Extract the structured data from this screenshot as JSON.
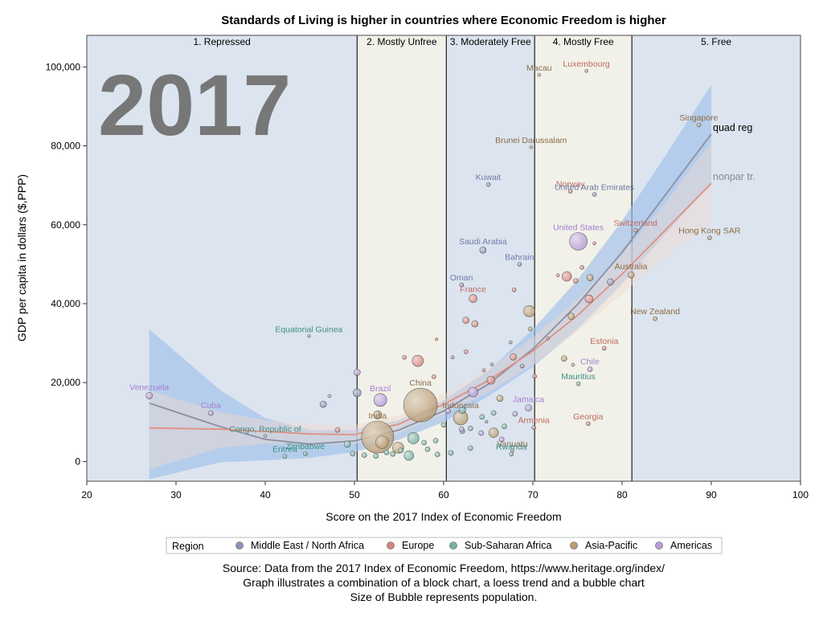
{
  "chart_data": {
    "type": "scatter",
    "title": "Standards of Living is higher in countries where Economic Freedom is higher",
    "xlabel": "Score on the 2017 Index of Economic Freedom",
    "ylabel": "GDP per capita in dollars ($,PPP)",
    "xlim": [
      20,
      100
    ],
    "ylim": [
      -5000,
      108000
    ],
    "x_ticks": [
      20,
      30,
      40,
      50,
      60,
      70,
      80,
      90,
      100
    ],
    "x_tick_labels": [
      "20",
      "30",
      "40",
      "50",
      "60",
      "70",
      "80",
      "90",
      "100"
    ],
    "y_ticks": [
      0,
      20000,
      40000,
      60000,
      80000,
      100000
    ],
    "y_tick_labels": [
      "0",
      "20,000",
      "40,000",
      "60,000",
      "80,000",
      "100,000"
    ],
    "year_label": "2017",
    "bands": [
      {
        "label": "1. Repressed",
        "from": 20,
        "to": 50.3,
        "color": "#dce4ef"
      },
      {
        "label": "2. Mostly Unfree",
        "from": 50.3,
        "to": 60.3,
        "color": "#f1f1e9"
      },
      {
        "label": "3. Moderately Free",
        "from": 60.3,
        "to": 70.2,
        "color": "#dce4ef"
      },
      {
        "label": "4. Mostly Free",
        "from": 70.2,
        "to": 81.1,
        "color": "#f1f1e9"
      },
      {
        "label": "5. Free",
        "from": 81.1,
        "to": 100,
        "color": "#dce4ef"
      }
    ],
    "regions": [
      {
        "name": "Middle East / North Africa",
        "color": "#8a94b8"
      },
      {
        "name": "Europe",
        "color": "#d8847c"
      },
      {
        "name": "Sub-Saharan Africa",
        "color": "#76b2a6"
      },
      {
        "name": "Asia-Pacific",
        "color": "#b89c72"
      },
      {
        "name": "Americas",
        "color": "#b79bd6"
      }
    ],
    "label_colors": [
      "#6f7aa8",
      "#c0695e",
      "#3e8f80",
      "#8c6c46",
      "#a57fd0"
    ],
    "legend_title": "Region",
    "trend_labels": {
      "quad": "quad reg",
      "loess": "nonpar tr."
    },
    "quad_curve": [
      [
        27,
        14800
      ],
      [
        35,
        8800
      ],
      [
        40,
        5600
      ],
      [
        45,
        4400
      ],
      [
        50,
        5200
      ],
      [
        55,
        8000
      ],
      [
        60,
        12800
      ],
      [
        65,
        19600
      ],
      [
        70,
        28500
      ],
      [
        75,
        39800
      ],
      [
        80,
        53000
      ],
      [
        85,
        68000
      ],
      [
        90,
        83000
      ]
    ],
    "quad_band_upper": [
      [
        27,
        33500
      ],
      [
        35,
        18000
      ],
      [
        40,
        11000
      ],
      [
        45,
        8000
      ],
      [
        50,
        8000
      ],
      [
        55,
        10500
      ],
      [
        60,
        15500
      ],
      [
        65,
        23000
      ],
      [
        70,
        33500
      ],
      [
        75,
        46000
      ],
      [
        80,
        61000
      ],
      [
        85,
        78000
      ],
      [
        90,
        95500
      ]
    ],
    "quad_band_lower": [
      [
        27,
        -4500
      ],
      [
        35,
        -200
      ],
      [
        40,
        300
      ],
      [
        45,
        900
      ],
      [
        50,
        2400
      ],
      [
        55,
        5500
      ],
      [
        60,
        10000
      ],
      [
        65,
        16500
      ],
      [
        70,
        24000
      ],
      [
        75,
        33500
      ],
      [
        80,
        45000
      ],
      [
        85,
        58000
      ],
      [
        90,
        70500
      ]
    ],
    "loess_curve": [
      [
        27,
        8500
      ],
      [
        35,
        8200
      ],
      [
        40,
        7600
      ],
      [
        45,
        7000
      ],
      [
        50,
        6800
      ],
      [
        55,
        9500
      ],
      [
        60,
        14500
      ],
      [
        65,
        20500
      ],
      [
        70,
        28000
      ],
      [
        75,
        37000
      ],
      [
        80,
        47500
      ],
      [
        85,
        59000
      ],
      [
        90,
        70500
      ]
    ],
    "loess_band_upper": [
      [
        27,
        18000
      ],
      [
        35,
        12500
      ],
      [
        40,
        10500
      ],
      [
        45,
        9500
      ],
      [
        50,
        9200
      ],
      [
        55,
        11800
      ],
      [
        60,
        17000
      ],
      [
        65,
        23500
      ],
      [
        70,
        31500
      ],
      [
        75,
        41000
      ],
      [
        80,
        52500
      ],
      [
        85,
        66000
      ],
      [
        90,
        81000
      ]
    ],
    "loess_band_lower": [
      [
        27,
        -2000
      ],
      [
        35,
        3500
      ],
      [
        40,
        4500
      ],
      [
        45,
        4500
      ],
      [
        50,
        4400
      ],
      [
        55,
        7200
      ],
      [
        60,
        12000
      ],
      [
        65,
        17500
      ],
      [
        70,
        24500
      ],
      [
        75,
        33000
      ],
      [
        80,
        42500
      ],
      [
        85,
        52000
      ],
      [
        90,
        60000
      ]
    ],
    "points": [
      {
        "x": 27,
        "y": 16700,
        "r": 4,
        "region": 4,
        "label": "Venezuela"
      },
      {
        "x": 33.9,
        "y": 12300,
        "r": 3,
        "region": 4,
        "label": "Cuba"
      },
      {
        "x": 44.9,
        "y": 31800,
        "r": 1.8,
        "region": 2,
        "label": "Equatorial Guinea"
      },
      {
        "x": 40,
        "y": 6500,
        "r": 2,
        "region": 2,
        "label": "Congo, Republic of"
      },
      {
        "x": 44.5,
        "y": 2000,
        "r": 2.5,
        "region": 2,
        "label": "Zimbabwe"
      },
      {
        "x": 42.2,
        "y": 1300,
        "r": 2.5,
        "region": 2,
        "label": "Eritrea"
      },
      {
        "x": 52.9,
        "y": 15600,
        "r": 8,
        "region": 4,
        "label": "Brazil"
      },
      {
        "x": 52.6,
        "y": 11800,
        "r": 5,
        "region": 3,
        "label": ""
      },
      {
        "x": 52.6,
        "y": 6200,
        "r": 20,
        "region": 3,
        "label": "India"
      },
      {
        "x": 57.4,
        "y": 14300,
        "r": 21,
        "region": 3,
        "label": "China"
      },
      {
        "x": 61.9,
        "y": 11100,
        "r": 9,
        "region": 3,
        "label": "Indonesia"
      },
      {
        "x": 57.1,
        "y": 25500,
        "r": 7,
        "region": 1,
        "label": ""
      },
      {
        "x": 64.8,
        "y": 10100,
        "r": 1.8,
        "region": 0,
        "label": ""
      },
      {
        "x": 69.5,
        "y": 13600,
        "r": 4,
        "region": 4,
        "label": "Jamaica"
      },
      {
        "x": 70.1,
        "y": 8600,
        "r": 2.5,
        "region": 1,
        "label": "Armenia"
      },
      {
        "x": 76.2,
        "y": 9600,
        "r": 2.5,
        "region": 1,
        "label": "Georgia"
      },
      {
        "x": 76.4,
        "y": 23400,
        "r": 3,
        "region": 4,
        "label": "Chile"
      },
      {
        "x": 75.1,
        "y": 19700,
        "r": 2.5,
        "region": 2,
        "label": "Mauritius"
      },
      {
        "x": 67.7,
        "y": 2700,
        "r": 2,
        "region": 3,
        "label": "Vanuatu"
      },
      {
        "x": 67.6,
        "y": 1900,
        "r": 2.5,
        "region": 2,
        "label": "Rwanda"
      },
      {
        "x": 78,
        "y": 28700,
        "r": 2.5,
        "region": 1,
        "label": "Estonia"
      },
      {
        "x": 83.7,
        "y": 36200,
        "r": 2.5,
        "region": 3,
        "label": "New Zealand"
      },
      {
        "x": 81,
        "y": 47300,
        "r": 4,
        "region": 3,
        "label": "Australia"
      },
      {
        "x": 81.5,
        "y": 58600,
        "r": 2.5,
        "region": 1,
        "label": "Switzerland"
      },
      {
        "x": 89.8,
        "y": 56700,
        "r": 2.5,
        "region": 3,
        "label": "Hong Kong SAR"
      },
      {
        "x": 88.6,
        "y": 85300,
        "r": 2.5,
        "region": 3,
        "label": "Singapore"
      },
      {
        "x": 75.1,
        "y": 55800,
        "r": 11,
        "region": 4,
        "label": "United States"
      },
      {
        "x": 74.2,
        "y": 68500,
        "r": 2.5,
        "region": 1,
        "label": "Norway"
      },
      {
        "x": 76.9,
        "y": 67700,
        "r": 2.5,
        "region": 0,
        "label": "United Arab Emirates"
      },
      {
        "x": 76,
        "y": 99000,
        "r": 2,
        "region": 1,
        "label": "Luxembourg"
      },
      {
        "x": 70.7,
        "y": 98000,
        "r": 2,
        "region": 3,
        "label": "Macau"
      },
      {
        "x": 69.8,
        "y": 79700,
        "r": 2,
        "region": 3,
        "label": "Brunei Darussalam"
      },
      {
        "x": 65,
        "y": 70200,
        "r": 2.5,
        "region": 0,
        "label": "Kuwait"
      },
      {
        "x": 64.4,
        "y": 53600,
        "r": 4,
        "region": 0,
        "label": "Saudi Arabia"
      },
      {
        "x": 68.5,
        "y": 50000,
        "r": 2.5,
        "region": 0,
        "label": "Bahrain"
      },
      {
        "x": 62,
        "y": 44800,
        "r": 2.5,
        "region": 0,
        "label": "Oman"
      },
      {
        "x": 63.3,
        "y": 41300,
        "r": 5,
        "region": 1,
        "label": "France"
      },
      {
        "x": 73.8,
        "y": 46900,
        "r": 6,
        "region": 1,
        "label": ""
      },
      {
        "x": 74.8,
        "y": 45800,
        "r": 3,
        "region": 1,
        "label": ""
      },
      {
        "x": 76.4,
        "y": 46600,
        "r": 4,
        "region": 3,
        "label": ""
      },
      {
        "x": 78.7,
        "y": 45500,
        "r": 4,
        "region": 0,
        "label": ""
      },
      {
        "x": 76.3,
        "y": 41200,
        "r": 5,
        "region": 1,
        "label": ""
      },
      {
        "x": 69.6,
        "y": 38100,
        "r": 7,
        "region": 3,
        "label": ""
      },
      {
        "x": 74.3,
        "y": 36800,
        "r": 4,
        "region": 3,
        "label": ""
      },
      {
        "x": 62.5,
        "y": 35800,
        "r": 4,
        "region": 1,
        "label": ""
      },
      {
        "x": 63.5,
        "y": 34900,
        "r": 4,
        "region": 1,
        "label": ""
      },
      {
        "x": 67.8,
        "y": 26500,
        "r": 4,
        "region": 1,
        "label": ""
      },
      {
        "x": 65.3,
        "y": 20600,
        "r": 5,
        "region": 1,
        "label": ""
      },
      {
        "x": 63.3,
        "y": 17600,
        "r": 6,
        "region": 4,
        "label": ""
      },
      {
        "x": 66.3,
        "y": 16000,
        "r": 4,
        "region": 3,
        "label": ""
      },
      {
        "x": 65.6,
        "y": 7300,
        "r": 6,
        "region": 3,
        "label": ""
      },
      {
        "x": 62.1,
        "y": 13000,
        "r": 4,
        "region": 2,
        "label": ""
      },
      {
        "x": 56.6,
        "y": 5900,
        "r": 7,
        "region": 2,
        "label": ""
      },
      {
        "x": 54.9,
        "y": 3500,
        "r": 7,
        "region": 3,
        "label": ""
      },
      {
        "x": 53.1,
        "y": 4900,
        "r": 8,
        "region": 3,
        "label": ""
      },
      {
        "x": 56.1,
        "y": 1500,
        "r": 6,
        "region": 2,
        "label": ""
      },
      {
        "x": 50.3,
        "y": 17400,
        "r": 5,
        "region": 0,
        "label": ""
      },
      {
        "x": 50.3,
        "y": 22600,
        "r": 4,
        "region": 4,
        "label": ""
      },
      {
        "x": 46.5,
        "y": 14500,
        "r": 4,
        "region": 0,
        "label": ""
      },
      {
        "x": 49.2,
        "y": 4400,
        "r": 4,
        "region": 2,
        "label": ""
      },
      {
        "x": 48.1,
        "y": 8000,
        "r": 3,
        "region": 1,
        "label": ""
      },
      {
        "x": 49.8,
        "y": 2000,
        "r": 3,
        "region": 2,
        "label": ""
      },
      {
        "x": 51.1,
        "y": 1600,
        "r": 3,
        "region": 2,
        "label": ""
      },
      {
        "x": 52.4,
        "y": 1400,
        "r": 3,
        "region": 2,
        "label": ""
      },
      {
        "x": 53.6,
        "y": 2300,
        "r": 3,
        "region": 2,
        "label": ""
      },
      {
        "x": 54.3,
        "y": 1900,
        "r": 3,
        "region": 2,
        "label": ""
      },
      {
        "x": 55.2,
        "y": 2800,
        "r": 3,
        "region": 2,
        "label": ""
      },
      {
        "x": 58.2,
        "y": 3100,
        "r": 3,
        "region": 2,
        "label": ""
      },
      {
        "x": 59.3,
        "y": 1800,
        "r": 3,
        "region": 2,
        "label": ""
      },
      {
        "x": 60.8,
        "y": 2200,
        "r": 3,
        "region": 2,
        "label": ""
      },
      {
        "x": 57.8,
        "y": 4800,
        "r": 3,
        "region": 2,
        "label": ""
      },
      {
        "x": 59.1,
        "y": 5300,
        "r": 3,
        "region": 2,
        "label": ""
      },
      {
        "x": 60,
        "y": 9300,
        "r": 3,
        "region": 2,
        "label": ""
      },
      {
        "x": 63,
        "y": 8400,
        "r": 3,
        "region": 2,
        "label": ""
      },
      {
        "x": 62.1,
        "y": 7700,
        "r": 3,
        "region": 2,
        "label": ""
      },
      {
        "x": 64.3,
        "y": 11300,
        "r": 3,
        "region": 2,
        "label": ""
      },
      {
        "x": 65.6,
        "y": 12300,
        "r": 3,
        "region": 2,
        "label": ""
      },
      {
        "x": 66.8,
        "y": 8900,
        "r": 3,
        "region": 2,
        "label": ""
      },
      {
        "x": 63,
        "y": 3400,
        "r": 3,
        "region": 2,
        "label": ""
      },
      {
        "x": 60.5,
        "y": 12800,
        "r": 3,
        "region": 4,
        "label": ""
      },
      {
        "x": 62,
        "y": 8200,
        "r": 3,
        "region": 4,
        "label": ""
      },
      {
        "x": 64.2,
        "y": 7200,
        "r": 3,
        "region": 4,
        "label": ""
      },
      {
        "x": 66.5,
        "y": 5600,
        "r": 3,
        "region": 4,
        "label": ""
      },
      {
        "x": 68,
        "y": 12100,
        "r": 3,
        "region": 4,
        "label": ""
      },
      {
        "x": 61,
        "y": 26400,
        "r": 2,
        "region": 1,
        "label": ""
      },
      {
        "x": 62.5,
        "y": 27800,
        "r": 2.5,
        "region": 1,
        "label": ""
      },
      {
        "x": 64.5,
        "y": 23100,
        "r": 2,
        "region": 1,
        "label": ""
      },
      {
        "x": 67.9,
        "y": 43500,
        "r": 2.5,
        "region": 1,
        "label": ""
      },
      {
        "x": 67.5,
        "y": 30200,
        "r": 2,
        "region": 0,
        "label": ""
      },
      {
        "x": 69.7,
        "y": 33600,
        "r": 2.5,
        "region": 3,
        "label": ""
      },
      {
        "x": 68.8,
        "y": 24200,
        "r": 2.5,
        "region": 0,
        "label": ""
      },
      {
        "x": 70.2,
        "y": 21600,
        "r": 2.5,
        "region": 1,
        "label": ""
      },
      {
        "x": 72.8,
        "y": 47200,
        "r": 2,
        "region": 1,
        "label": ""
      },
      {
        "x": 75.5,
        "y": 49200,
        "r": 2.5,
        "region": 1,
        "label": ""
      },
      {
        "x": 76.9,
        "y": 55300,
        "r": 2,
        "region": 1,
        "label": ""
      },
      {
        "x": 73.5,
        "y": 26100,
        "r": 3.5,
        "region": 3,
        "label": ""
      },
      {
        "x": 74.5,
        "y": 24500,
        "r": 2,
        "region": 1,
        "label": ""
      },
      {
        "x": 71.7,
        "y": 31200,
        "r": 2,
        "region": 1,
        "label": ""
      },
      {
        "x": 65.4,
        "y": 24600,
        "r": 2,
        "region": 0,
        "label": ""
      },
      {
        "x": 59.2,
        "y": 31000,
        "r": 1.8,
        "region": 1,
        "label": ""
      },
      {
        "x": 58.9,
        "y": 21500,
        "r": 2.5,
        "region": 1,
        "label": ""
      },
      {
        "x": 55.6,
        "y": 26400,
        "r": 2.5,
        "region": 1,
        "label": ""
      },
      {
        "x": 47.2,
        "y": 16600,
        "r": 2,
        "region": 4,
        "label": ""
      }
    ]
  },
  "source_lines": [
    "Source: Data from the 2017 Index of Economic Freedom, https://www.heritage.org/index/",
    "Graph illustrates a combination of a block chart, a loess trend and a bubble chart",
    "Size of Bubble represents population."
  ]
}
